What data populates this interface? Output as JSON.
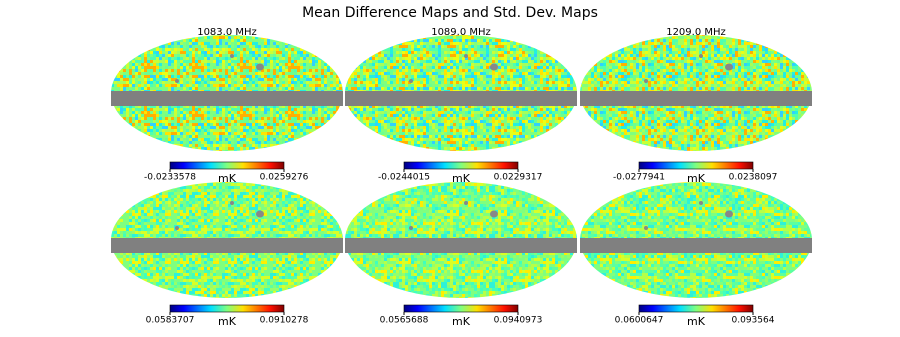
{
  "title": "Mean Difference Maps and Std. Dev. Maps",
  "panels": [
    {
      "label": "1083.0 MHz",
      "mean_colorbar": {
        "min": -0.0233578,
        "max": 0.0259276,
        "unit": "mK"
      },
      "std_colorbar": {
        "min": 0.0583707,
        "max": 0.0910278,
        "unit": "mK"
      }
    },
    {
      "label": "1089.0 MHz",
      "mean_colorbar": {
        "min": -0.0244015,
        "max": 0.0229317,
        "unit": "mK"
      },
      "std_colorbar": {
        "min": 0.0565688,
        "max": 0.0940973,
        "unit": "mK"
      }
    },
    {
      "label": "1209.0 MHz",
      "mean_colorbar": {
        "min": -0.0277941,
        "max": 0.0238097,
        "unit": "mK"
      },
      "std_colorbar": {
        "min": 0.0600647,
        "max": 0.093564,
        "unit": "mK"
      }
    }
  ]
}
